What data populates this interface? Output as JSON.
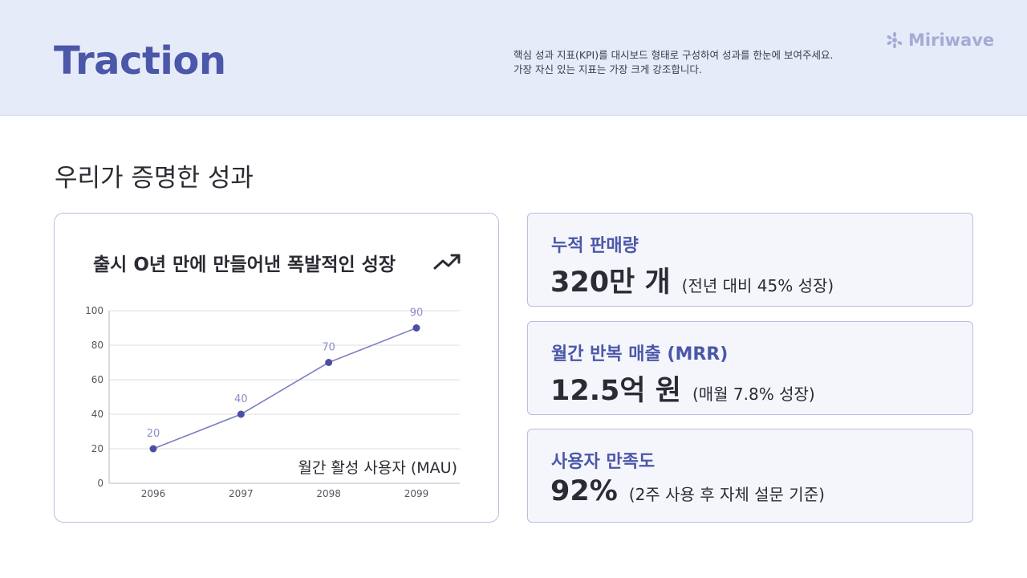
{
  "header": {
    "title": "Traction",
    "description": "핵심 성과 지표(KPI)를 대시보드 형태로 구성하여 성과를 한눈에 보여주세요. 가장 자신 있는 지표는 가장 크게 강조합니다.",
    "logo_text": "Miriwave",
    "logo_icon": "sparkle-icon"
  },
  "section": {
    "title": "우리가 증명한 성과"
  },
  "chart": {
    "title": "출시 O년 만에 만들어낸 폭발적인 성장",
    "title_icon": "trending-up-icon"
  },
  "chart_data": {
    "type": "line",
    "title": "출시 O년 만에 만들어낸 폭발적인 성장",
    "categories": [
      "2096",
      "2097",
      "2098",
      "2099"
    ],
    "series": [
      {
        "name": "월간 활성 사용자 (MAU)",
        "values": [
          20,
          40,
          70,
          90
        ]
      }
    ],
    "ylim": [
      0,
      100
    ],
    "yticks": [
      0,
      20,
      40,
      60,
      80,
      100
    ],
    "grid": true,
    "legend": "bottom-right",
    "color": "#7b7fc0",
    "point_color": "#4b4ea3",
    "label_color": "#8a8fc6"
  },
  "kpis": [
    {
      "label": "누적 판매량",
      "value": "320만 개",
      "note": "(전년 대비 45% 성장)"
    },
    {
      "label": "월간 반복 매출 (MRR)",
      "value": "12.5억 원",
      "note": "(매월 7.8% 성장)"
    },
    {
      "label": "사용자 만족도",
      "value": "92%",
      "note": "(2주 사용 후 자체 설문 기준)"
    }
  ],
  "colors": {
    "accent": "#4b57a8",
    "header_bg": "#e5ebf9",
    "card_border": "#b9bde0",
    "logo": "#a5abd4"
  }
}
